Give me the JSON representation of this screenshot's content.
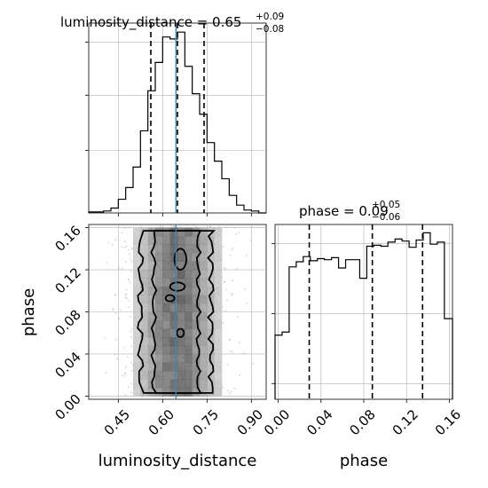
{
  "chart_data": {
    "type": "corner",
    "panels": [
      {
        "type": "histogram",
        "variable": "luminosity_distance",
        "title": {
          "prefix": "luminosity_distance = 0.65",
          "plus": "+0.09",
          "minus": "−0.08"
        },
        "xlim": [
          0.35,
          0.95
        ],
        "bin_edges": [
          0.35,
          0.375,
          0.4,
          0.425,
          0.45,
          0.475,
          0.5,
          0.525,
          0.55,
          0.575,
          0.6,
          0.625,
          0.65,
          0.675,
          0.7,
          0.725,
          0.75,
          0.775,
          0.8,
          0.825,
          0.85,
          0.875,
          0.9,
          0.925,
          0.95
        ],
        "counts": [
          1,
          1,
          2,
          5,
          14,
          26,
          47,
          84,
          125,
          154,
          180,
          178,
          185,
          150,
          122,
          101,
          72,
          53,
          35,
          18,
          8,
          3,
          2,
          0
        ],
        "quantiles": [
          0.56,
          0.65,
          0.74
        ],
        "truth": 0.645,
        "grid": true
      },
      {
        "type": "histogram",
        "variable": "phase",
        "title": {
          "prefix": "phase = 0.09",
          "plus": "+0.05",
          "minus": "−0.06"
        },
        "xlim": [
          -0.003,
          0.163
        ],
        "bin_edges": [
          -0.003,
          0.0036,
          0.0102,
          0.0168,
          0.0234,
          0.03,
          0.0366,
          0.0432,
          0.0498,
          0.0564,
          0.063,
          0.0696,
          0.0762,
          0.0828,
          0.0894,
          0.096,
          0.1026,
          0.1092,
          0.1158,
          0.1224,
          0.129,
          0.1356,
          0.1422,
          0.1488,
          0.1554,
          0.163
        ],
        "counts": [
          62,
          65,
          128,
          133,
          138,
          134,
          136,
          135,
          137,
          127,
          135,
          135,
          117,
          148,
          149,
          148,
          152,
          155,
          153,
          147,
          154,
          161,
          150,
          152,
          78
        ],
        "quantiles": [
          0.029,
          0.088,
          0.135
        ],
        "grid": true
      },
      {
        "type": "2d-density",
        "x_variable": "luminosity_distance",
        "y_variable": "phase",
        "xlim": [
          0.35,
          0.95
        ],
        "ylim": [
          -0.003,
          0.163
        ],
        "truth": 0.645,
        "grid": true
      }
    ],
    "xlabels": [
      "luminosity_distance",
      "phase"
    ],
    "ylabel": "phase",
    "x_ticks_luminosity_distance": [
      "0.45",
      "0.60",
      "0.75",
      "0.90"
    ],
    "x_ticks_phase": [
      "0.00",
      "0.04",
      "0.08",
      "0.12",
      "0.16"
    ],
    "y_ticks_phase": [
      "0.00",
      "0.04",
      "0.08",
      "0.12",
      "0.16"
    ],
    "colors": {
      "histogram": "#000000",
      "truth": "#4682b4",
      "density": "#555555",
      "grid": "#b0b0b0"
    }
  }
}
